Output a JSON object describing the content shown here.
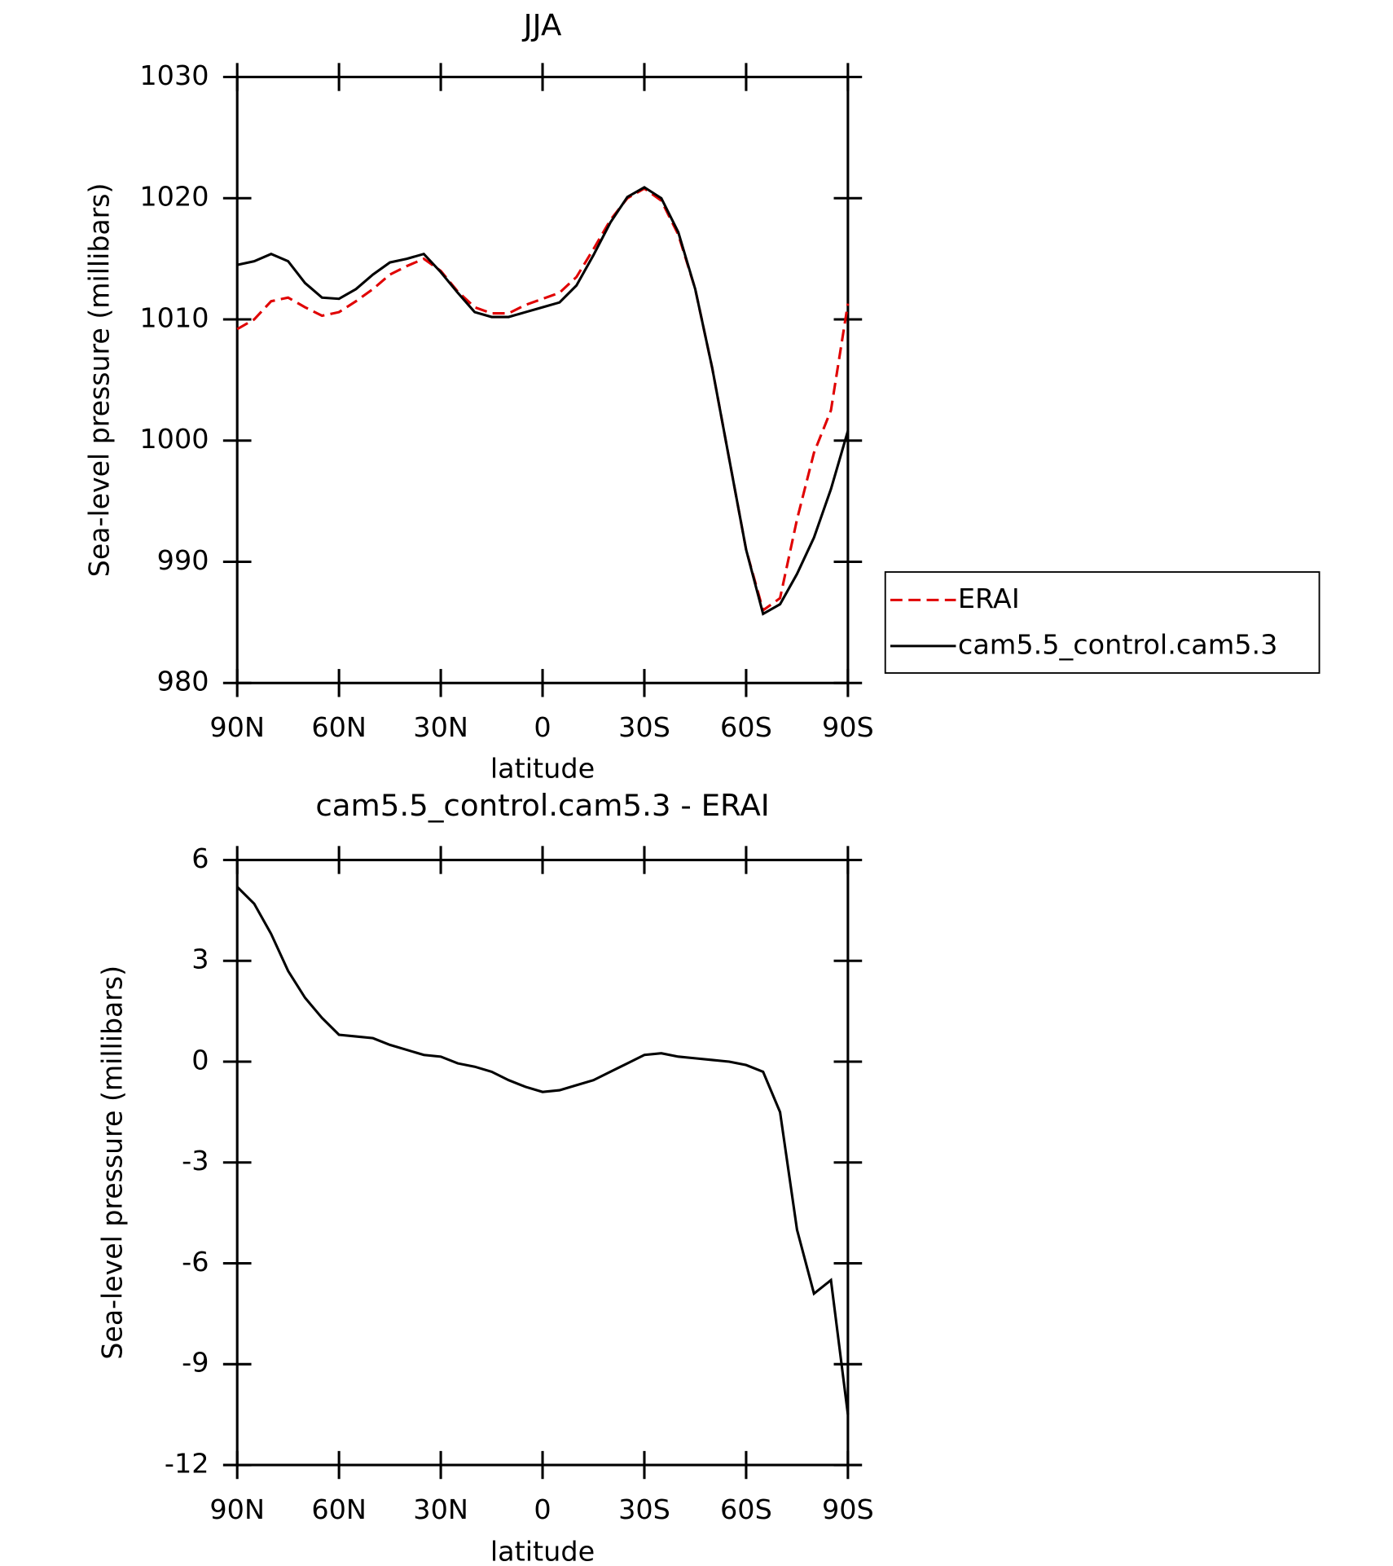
{
  "chart_data": [
    {
      "type": "line",
      "title": "JJA",
      "x_label": "latitude",
      "y_label": "Sea-level pressure (millibars)",
      "x": [
        90,
        85,
        80,
        75,
        70,
        65,
        60,
        55,
        50,
        45,
        40,
        35,
        30,
        25,
        20,
        15,
        10,
        5,
        0,
        -5,
        -10,
        -15,
        -20,
        -25,
        -30,
        -35,
        -40,
        -45,
        -50,
        -55,
        -60,
        -65,
        -70,
        -75,
        -80,
        -85,
        -90
      ],
      "series": [
        {
          "name": "ERAI",
          "color": "#e00000",
          "dash": "dashed",
          "values": [
            1009.2,
            1010.0,
            1011.5,
            1011.8,
            1011.0,
            1010.3,
            1010.6,
            1011.5,
            1012.5,
            1013.7,
            1014.4,
            1015.0,
            1014.0,
            1012.3,
            1011.0,
            1010.5,
            1010.5,
            1011.2,
            1011.7,
            1012.2,
            1013.5,
            1015.8,
            1018.2,
            1020.0,
            1020.8,
            1019.8,
            1017.0,
            1012.5,
            1006.0,
            998.5,
            991.0,
            986.0,
            987.0,
            993.5,
            999.0,
            1002.5,
            1011.3
          ]
        },
        {
          "name": "cam5.5_control.cam5.3",
          "color": "#000000",
          "dash": "solid",
          "values": [
            1014.5,
            1014.8,
            1015.4,
            1014.8,
            1013.0,
            1011.8,
            1011.7,
            1012.5,
            1013.7,
            1014.7,
            1015.0,
            1015.4,
            1013.9,
            1012.2,
            1010.6,
            1010.2,
            1010.2,
            1010.6,
            1011.0,
            1011.4,
            1012.8,
            1015.3,
            1018.0,
            1020.1,
            1020.9,
            1020.0,
            1017.2,
            1012.5,
            1006.0,
            998.5,
            991.0,
            985.7,
            986.5,
            989.0,
            992.0,
            996.0,
            1000.8
          ]
        }
      ],
      "xlim": [
        90,
        -90
      ],
      "xticks": [
        {
          "value": 90,
          "label": "90N"
        },
        {
          "value": 60,
          "label": "60N"
        },
        {
          "value": 30,
          "label": "30N"
        },
        0,
        {
          "value": -30,
          "label": "30S"
        },
        {
          "value": -60,
          "label": "60S"
        },
        {
          "value": -90,
          "label": "90S"
        }
      ],
      "ylim": [
        980,
        1030
      ],
      "yticks": [
        980,
        990,
        1000,
        1010,
        1020,
        1030
      ],
      "legend": "right"
    },
    {
      "type": "line",
      "title": "cam5.5_control.cam5.3 - ERAI",
      "x_label": "latitude",
      "y_label": "Sea-level pressure (millibars)",
      "x": [
        90,
        85,
        80,
        75,
        70,
        65,
        60,
        55,
        50,
        45,
        40,
        35,
        30,
        25,
        20,
        15,
        10,
        5,
        0,
        -5,
        -10,
        -15,
        -20,
        -25,
        -30,
        -35,
        -40,
        -45,
        -50,
        -55,
        -60,
        -65,
        -70,
        -75,
        -80,
        -85,
        -90
      ],
      "series": [
        {
          "color": "#000000",
          "dash": "solid",
          "values": [
            5.2,
            4.7,
            3.8,
            2.7,
            1.9,
            1.3,
            0.8,
            0.75,
            0.7,
            0.5,
            0.35,
            0.2,
            0.15,
            -0.05,
            -0.15,
            -0.3,
            -0.55,
            -0.75,
            -0.9,
            -0.85,
            -0.7,
            -0.55,
            -0.3,
            -0.05,
            0.2,
            0.25,
            0.15,
            0.1,
            0.05,
            0.0,
            -0.1,
            -0.3,
            -1.5,
            -5.0,
            -6.9,
            -6.5,
            -10.5
          ]
        }
      ],
      "xlim": [
        90,
        -90
      ],
      "xticks": [
        {
          "value": 90,
          "label": "90N"
        },
        {
          "value": 60,
          "label": "60N"
        },
        {
          "value": 30,
          "label": "30N"
        },
        0,
        {
          "value": -30,
          "label": "30S"
        },
        {
          "value": -60,
          "label": "60S"
        },
        {
          "value": -90,
          "label": "90S"
        }
      ],
      "ylim": [
        -12,
        6
      ],
      "yticks": [
        -12,
        -9,
        -6,
        -3,
        0,
        3,
        6
      ]
    }
  ]
}
